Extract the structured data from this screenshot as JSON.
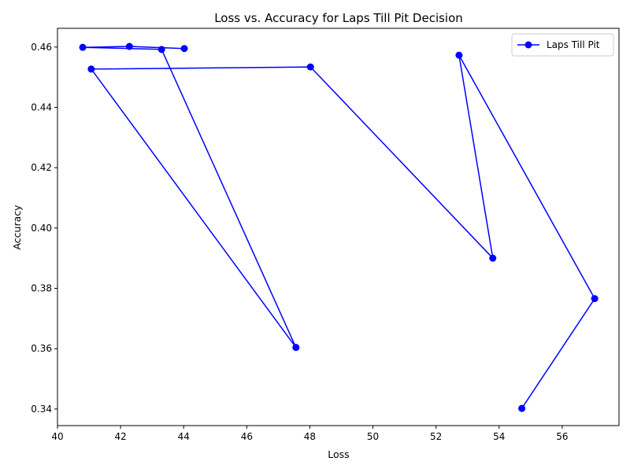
{
  "chart_data": {
    "type": "line",
    "title": "Loss vs. Accuracy for Laps Till Pit Decision",
    "xlabel": "Loss",
    "ylabel": "Accuracy",
    "xlim": [
      40.0,
      57.8
    ],
    "ylim": [
      0.3345,
      0.4662
    ],
    "xticks": [
      "40",
      "42",
      "44",
      "46",
      "48",
      "50",
      "52",
      "54",
      "56"
    ],
    "yticks": [
      "0.34",
      "0.36",
      "0.38",
      "0.40",
      "0.42",
      "0.44",
      "0.46"
    ],
    "grid": false,
    "legend_position": "top-right",
    "series": [
      {
        "name": "Laps Till Pit",
        "color": "#0000ff",
        "marker": "circle",
        "points": [
          {
            "x": 54.72,
            "y": 0.3402
          },
          {
            "x": 57.03,
            "y": 0.3766
          },
          {
            "x": 52.73,
            "y": 0.4573
          },
          {
            "x": 53.8,
            "y": 0.39
          },
          {
            "x": 48.02,
            "y": 0.4534
          },
          {
            "x": 41.07,
            "y": 0.4527
          },
          {
            "x": 47.56,
            "y": 0.3604
          },
          {
            "x": 43.3,
            "y": 0.4592
          },
          {
            "x": 40.8,
            "y": 0.4599
          },
          {
            "x": 42.28,
            "y": 0.4602
          },
          {
            "x": 44.02,
            "y": 0.4595
          }
        ]
      }
    ]
  }
}
